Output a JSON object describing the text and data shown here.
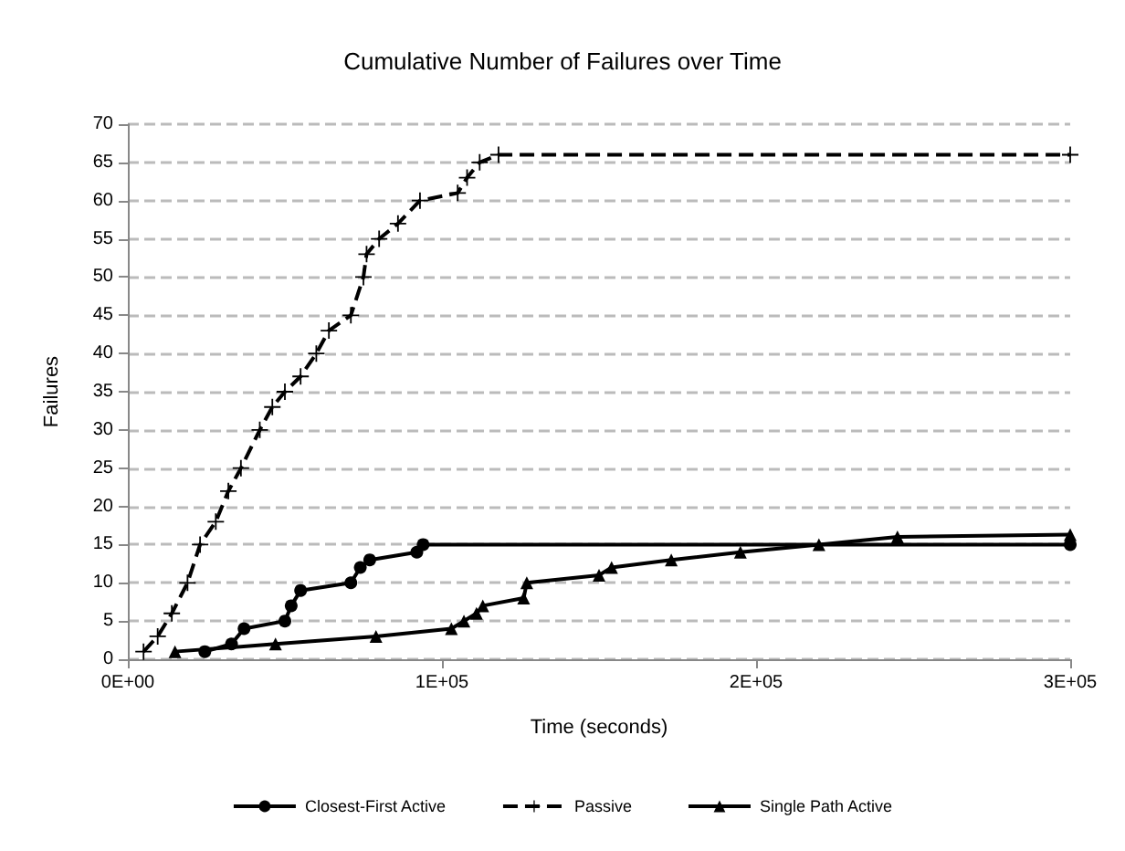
{
  "chart_data": {
    "type": "line",
    "title": "Cumulative Number of Failures over Time",
    "xlabel": "Time (seconds)",
    "ylabel": "Failures",
    "xlim": [
      0,
      300000
    ],
    "xticks": [
      {
        "value": 0,
        "label": "0E+00"
      },
      {
        "value": 100000,
        "label": "1E+05"
      },
      {
        "value": 200000,
        "label": "2E+05"
      },
      {
        "value": 300000,
        "label": "3E+05"
      }
    ],
    "ylim": [
      0,
      70
    ],
    "yticks": [
      0,
      5,
      10,
      15,
      20,
      25,
      30,
      35,
      40,
      45,
      50,
      55,
      60,
      65,
      70
    ],
    "grid": "y",
    "legend": "bottom",
    "series": [
      {
        "name": "Closest-First Active",
        "color": "#000000",
        "marker": "circle",
        "line_style": "solid",
        "x": [
          24500,
          33000,
          37000,
          50000,
          52000,
          55000,
          71000,
          74000,
          77000,
          92000,
          94000,
          300000
        ],
        "values": [
          1,
          2,
          4,
          5,
          7,
          9,
          10,
          12,
          13,
          14,
          15,
          15
        ]
      },
      {
        "name": "Passive",
        "color": "#000000",
        "marker": "cross",
        "line_style": "dashed",
        "x": [
          5000,
          9500,
          14000,
          19000,
          23000,
          28000,
          32000,
          36000,
          42000,
          46000,
          50000,
          55000,
          60000,
          64000,
          71000,
          75000,
          76000,
          80000,
          86000,
          93000,
          105000,
          108000,
          112000,
          118000,
          300000
        ],
        "values": [
          1,
          3,
          6,
          10,
          15,
          18,
          22,
          25,
          30,
          33,
          35,
          37,
          40,
          43,
          45,
          50,
          53,
          55,
          57,
          60,
          61,
          63,
          65,
          66,
          66
        ]
      },
      {
        "name": "Single Path Active",
        "color": "#000000",
        "marker": "triangle",
        "line_style": "solid",
        "x": [
          15000,
          47000,
          79000,
          103000,
          107000,
          111000,
          113000,
          126000,
          127000,
          150000,
          154000,
          173000,
          195000,
          220000,
          245000,
          300000
        ],
        "values": [
          1,
          2,
          3,
          4,
          5,
          6,
          7,
          8,
          10,
          11,
          12,
          13,
          14,
          15,
          16,
          16.3
        ]
      }
    ]
  }
}
